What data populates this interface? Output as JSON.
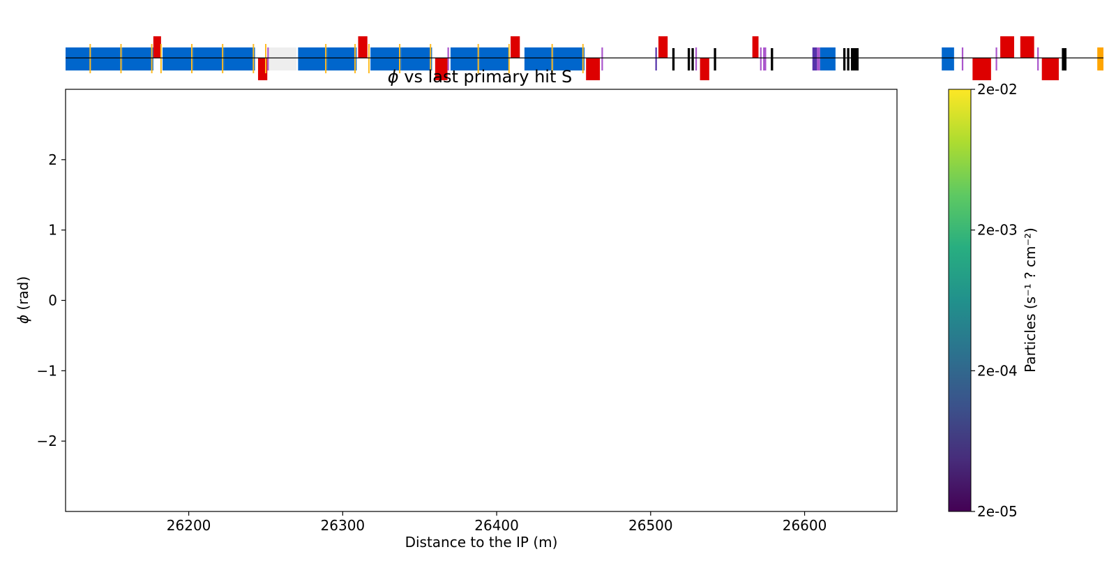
{
  "chart_data": {
    "type": "heatmap",
    "title_symbol": "ϕ",
    "title_rest": " vs last primary hit S",
    "xlabel": "Distance to the IP (m)",
    "ylabel_symbol": "ϕ",
    "ylabel_rest": " (rad)",
    "xlim": [
      26120,
      26660
    ],
    "ylim": [
      -3.0,
      3.0
    ],
    "x_ticks": [
      {
        "value": 26200,
        "label": "26200"
      },
      {
        "value": 26300,
        "label": "26300"
      },
      {
        "value": 26400,
        "label": "26400"
      },
      {
        "value": 26500,
        "label": "26500"
      },
      {
        "value": 26600,
        "label": "26600"
      }
    ],
    "y_ticks": [
      {
        "value": 2,
        "label": "2"
      },
      {
        "value": 1,
        "label": "1"
      },
      {
        "value": 0,
        "label": "0"
      },
      {
        "value": -1,
        "label": "−1"
      },
      {
        "value": -2,
        "label": "−2"
      }
    ],
    "values": [],
    "colorbar": {
      "label": "Particles (s⁻¹ ? cm⁻²)",
      "scale": "log",
      "colormap": "viridis",
      "range": [
        2e-05,
        0.02
      ],
      "ticks": [
        {
          "value": 0.02,
          "label": "2e-02"
        },
        {
          "value": 0.002,
          "label": "2e-03"
        },
        {
          "value": 0.0002,
          "label": "2e-04"
        },
        {
          "value": 2e-05,
          "label": "2e-05"
        }
      ]
    },
    "beamline": {
      "colors": {
        "dipole": "#0066cc",
        "quadrupole": "#dd0000",
        "sextupole": "#aa55cc",
        "octupole": "#5533aa",
        "corrector": "#ffbb22",
        "collimator": "#000000",
        "drift_chamber": "#eeeeee",
        "other": "#ffa500"
      },
      "elements": [
        {
          "kind": "dipole",
          "s0": 26120,
          "s1": 26137,
          "level": "center"
        },
        {
          "kind": "dipole",
          "s0": 26137,
          "s1": 26157,
          "level": "center"
        },
        {
          "kind": "dipole",
          "s0": 26157,
          "s1": 26177,
          "level": "center"
        },
        {
          "kind": "quadrupole",
          "s0": 26177,
          "s1": 26182,
          "level": "up"
        },
        {
          "kind": "dipole",
          "s0": 26183,
          "s1": 26203,
          "level": "center"
        },
        {
          "kind": "dipole",
          "s0": 26203,
          "s1": 26223,
          "level": "center"
        },
        {
          "kind": "dipole",
          "s0": 26223,
          "s1": 26243,
          "level": "center"
        },
        {
          "kind": "quadrupole",
          "s0": 26245,
          "s1": 26251,
          "level": "down"
        },
        {
          "kind": "sextupole",
          "s0": 26251,
          "s1": 26252,
          "level": "center"
        },
        {
          "kind": "drift_chamber",
          "s0": 26252,
          "s1": 26270,
          "level": "center"
        },
        {
          "kind": "dipole",
          "s0": 26271,
          "s1": 26290,
          "level": "center"
        },
        {
          "kind": "dipole",
          "s0": 26290,
          "s1": 26309,
          "level": "center"
        },
        {
          "kind": "quadrupole",
          "s0": 26310,
          "s1": 26316,
          "level": "up"
        },
        {
          "kind": "dipole",
          "s0": 26318,
          "s1": 26338,
          "level": "center"
        },
        {
          "kind": "dipole",
          "s0": 26338,
          "s1": 26358,
          "level": "center"
        },
        {
          "kind": "quadrupole",
          "s0": 26360,
          "s1": 26368,
          "level": "down"
        },
        {
          "kind": "sextupole",
          "s0": 26368,
          "s1": 26369,
          "level": "center"
        },
        {
          "kind": "dipole",
          "s0": 26370,
          "s1": 26389,
          "level": "center"
        },
        {
          "kind": "dipole",
          "s0": 26389,
          "s1": 26408,
          "level": "center"
        },
        {
          "kind": "quadrupole",
          "s0": 26409,
          "s1": 26415,
          "level": "up"
        },
        {
          "kind": "dipole",
          "s0": 26418,
          "s1": 26437,
          "level": "center"
        },
        {
          "kind": "dipole",
          "s0": 26437,
          "s1": 26457,
          "level": "center"
        },
        {
          "kind": "quadrupole",
          "s0": 26458,
          "s1": 26467,
          "level": "down"
        },
        {
          "kind": "sextupole",
          "s0": 26468,
          "s1": 26469,
          "level": "center"
        },
        {
          "kind": "octupole",
          "s0": 26503,
          "s1": 26504,
          "level": "center"
        },
        {
          "kind": "quadrupole",
          "s0": 26505,
          "s1": 26511,
          "level": "up"
        },
        {
          "kind": "collimator",
          "s0": 26514,
          "s1": 26515.5,
          "level": "center"
        },
        {
          "kind": "collimator",
          "s0": 26524,
          "s1": 26525.5,
          "level": "center"
        },
        {
          "kind": "collimator",
          "s0": 26526.5,
          "s1": 26528,
          "level": "center"
        },
        {
          "kind": "sextupole",
          "s0": 26529,
          "s1": 26530,
          "level": "center"
        },
        {
          "kind": "quadrupole",
          "s0": 26532,
          "s1": 26538,
          "level": "down"
        },
        {
          "kind": "collimator",
          "s0": 26541,
          "s1": 26542.5,
          "level": "center"
        },
        {
          "kind": "quadrupole",
          "s0": 26566,
          "s1": 26570,
          "level": "up"
        },
        {
          "kind": "sextupole",
          "s0": 26571,
          "s1": 26572,
          "level": "center"
        },
        {
          "kind": "sextupole",
          "s0": 26573,
          "s1": 26575,
          "level": "center"
        },
        {
          "kind": "collimator",
          "s0": 26578,
          "s1": 26579.5,
          "level": "center"
        },
        {
          "kind": "octupole",
          "s0": 26605,
          "s1": 26608,
          "level": "center"
        },
        {
          "kind": "sextupole",
          "s0": 26608,
          "s1": 26610,
          "level": "center"
        },
        {
          "kind": "dipole",
          "s0": 26610,
          "s1": 26620,
          "level": "center"
        },
        {
          "kind": "collimator",
          "s0": 26625,
          "s1": 26626.5,
          "level": "center"
        },
        {
          "kind": "collimator",
          "s0": 26627.5,
          "s1": 26629,
          "level": "center"
        },
        {
          "kind": "collimator",
          "s0": 26630,
          "s1": 26635,
          "level": "center"
        },
        {
          "kind": "dipole",
          "s0": 26689,
          "s1": 26697,
          "level": "center"
        },
        {
          "kind": "sextupole",
          "s0": 26702,
          "s1": 26703,
          "level": "center"
        },
        {
          "kind": "quadrupole",
          "s0": 26709,
          "s1": 26721,
          "level": "down"
        },
        {
          "kind": "sextupole",
          "s0": 26724,
          "s1": 26725,
          "level": "center"
        },
        {
          "kind": "quadrupole",
          "s0": 26727,
          "s1": 26736,
          "level": "up"
        },
        {
          "kind": "quadrupole",
          "s0": 26740,
          "s1": 26749,
          "level": "up"
        },
        {
          "kind": "sextupole",
          "s0": 26751,
          "s1": 26752,
          "level": "center"
        },
        {
          "kind": "quadrupole",
          "s0": 26754,
          "s1": 26765,
          "level": "down"
        },
        {
          "kind": "collimator",
          "s0": 26767,
          "s1": 26770,
          "level": "center"
        },
        {
          "kind": "other",
          "s0": 26790,
          "s1": 26794,
          "level": "center"
        }
      ],
      "corrector_marks": [
        26136,
        26156,
        26176,
        26182,
        26202,
        26222,
        26242,
        26250,
        26289,
        26308,
        26317,
        26337,
        26357,
        26388,
        26408,
        26436,
        26456
      ]
    }
  }
}
